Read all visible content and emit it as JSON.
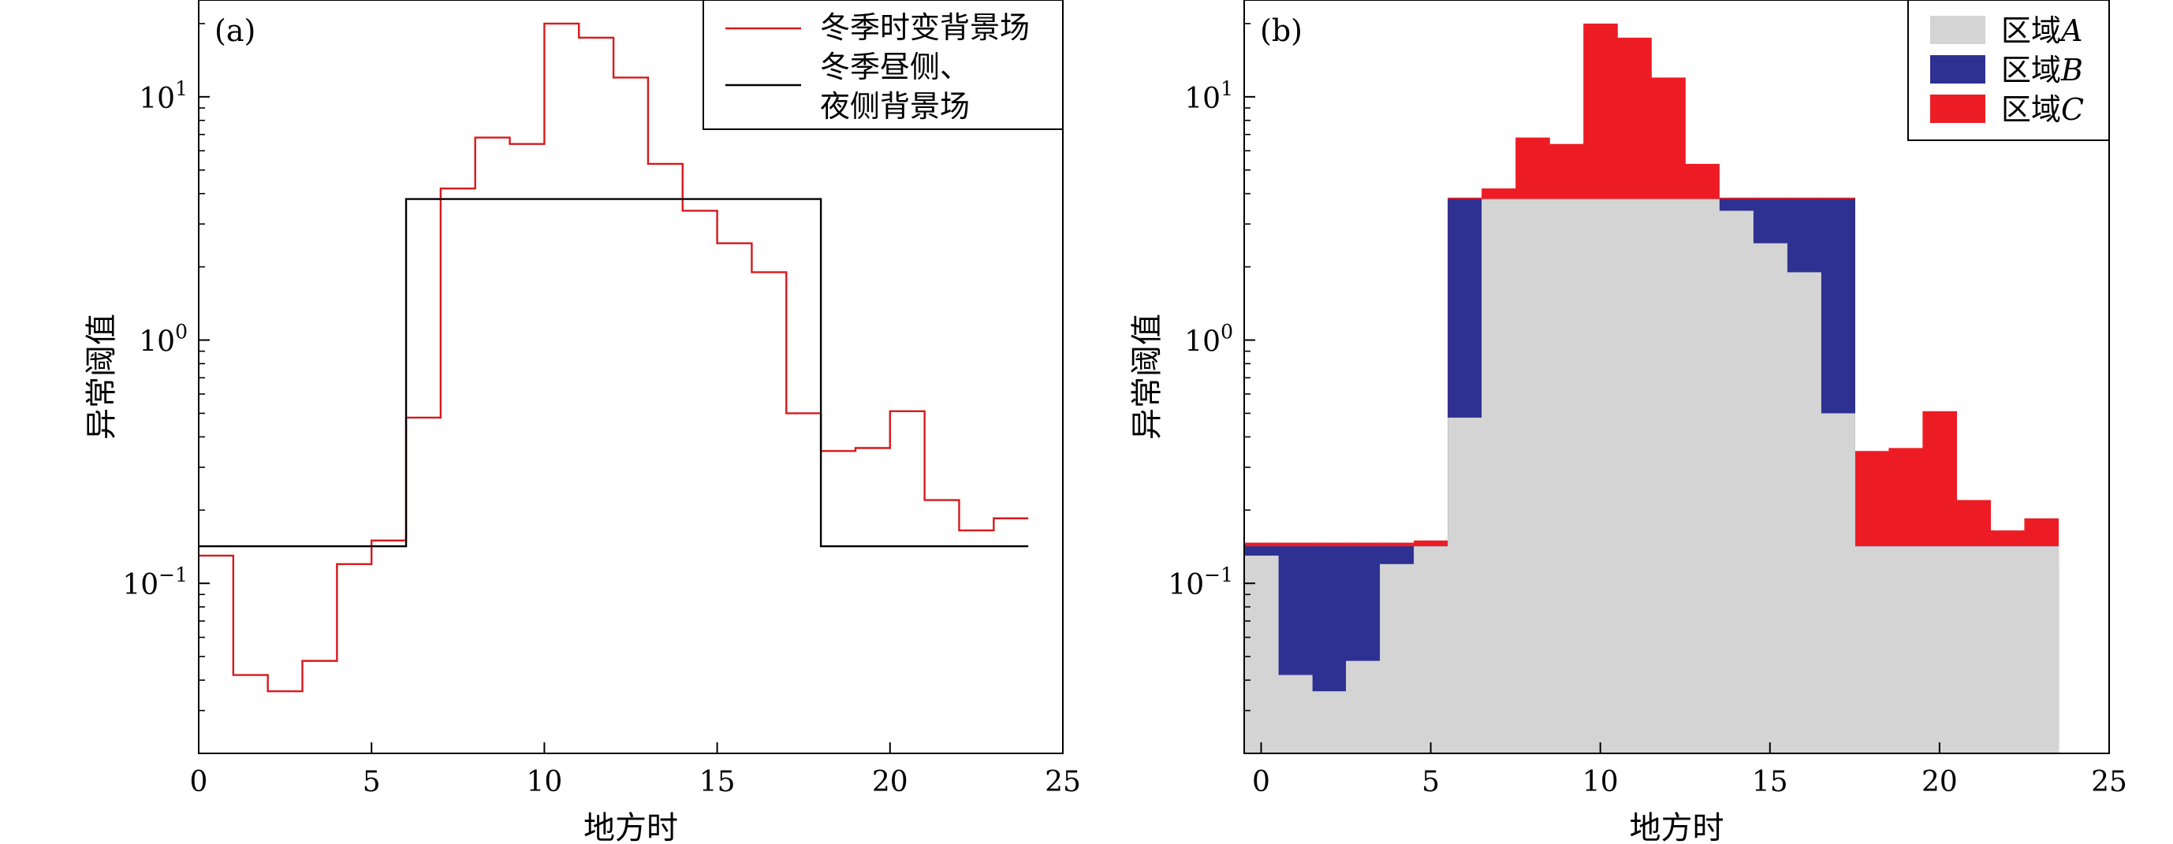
{
  "chart_data": [
    {
      "type": "step-line",
      "panel_label": "(a)",
      "xlabel": "地方时",
      "ylabel": "异常阈值",
      "xlim": [
        0,
        25
      ],
      "ylim": [
        0.02,
        25
      ],
      "yscale": "log",
      "xticks": [
        0,
        5,
        10,
        15,
        20,
        25
      ],
      "xtick_labels": [
        "0",
        "5",
        "10",
        "15",
        "20",
        "25"
      ],
      "yticks": [
        0.1,
        1,
        10
      ],
      "ytick_labels": [
        {
          "base": "10",
          "exp": "−1"
        },
        {
          "base": "10",
          "exp": "0"
        },
        {
          "base": "10",
          "exp": "1"
        }
      ],
      "legend_position": "top-right",
      "series": [
        {
          "name": "冬季时变背景场",
          "color": "#d7191c",
          "bin_edges": [
            0,
            1,
            2,
            3,
            4,
            5,
            6,
            7,
            8,
            9,
            10,
            11,
            12,
            13,
            14,
            15,
            16,
            17,
            18,
            19,
            20,
            21,
            22,
            23,
            24
          ],
          "values": [
            0.13,
            0.042,
            0.036,
            0.048,
            0.12,
            0.15,
            0.48,
            4.2,
            6.8,
            6.4,
            20,
            17.5,
            12,
            5.3,
            3.4,
            2.5,
            1.9,
            0.5,
            0.35,
            0.36,
            0.51,
            0.22,
            0.165,
            0.185
          ]
        },
        {
          "name_lines": [
            "冬季昼侧、",
            "夜侧背景场"
          ],
          "color": "#000000",
          "bin_edges": [
            0,
            6,
            18,
            24
          ],
          "values": [
            0.142,
            3.8,
            0.142
          ]
        }
      ]
    },
    {
      "type": "stacked-bar",
      "panel_label": "(b)",
      "xlabel": "地方时",
      "ylabel": "异常阈值",
      "xlim": [
        -0.5,
        25
      ],
      "ylim": [
        0.02,
        25
      ],
      "yscale": "log",
      "xticks": [
        0,
        5,
        10,
        15,
        20,
        25
      ],
      "xtick_labels": [
        "0",
        "5",
        "10",
        "15",
        "20",
        "25"
      ],
      "yticks": [
        0.1,
        1,
        10
      ],
      "ytick_labels": [
        {
          "base": "10",
          "exp": "−1"
        },
        {
          "base": "10",
          "exp": "0"
        },
        {
          "base": "10",
          "exp": "1"
        }
      ],
      "legend_position": "top-right",
      "hours": [
        0,
        1,
        2,
        3,
        4,
        5,
        6,
        7,
        8,
        9,
        10,
        11,
        12,
        13,
        14,
        15,
        16,
        17,
        18,
        19,
        20,
        21,
        22,
        23
      ],
      "series": [
        {
          "name_prefix": "区域",
          "name_var": "A",
          "color": "#d4d4d4",
          "values": [
            0.13,
            0.042,
            0.036,
            0.048,
            0.12,
            0.142,
            0.48,
            3.8,
            3.8,
            3.8,
            3.8,
            3.8,
            3.8,
            3.8,
            3.4,
            2.5,
            1.9,
            0.5,
            0.142,
            0.142,
            0.142,
            0.142,
            0.142,
            0.142
          ]
        },
        {
          "name_prefix": "区域",
          "name_var": "B",
          "color": "#2e3192",
          "values": [
            0.142,
            0.142,
            0.142,
            0.142,
            0.142,
            0.142,
            3.8,
            3.8,
            3.8,
            3.8,
            3.8,
            3.8,
            3.8,
            3.8,
            3.8,
            3.8,
            3.8,
            3.8,
            0.142,
            0.142,
            0.142,
            0.142,
            0.142,
            0.142
          ]
        },
        {
          "name_prefix": "区域",
          "name_var": "C",
          "color": "#ed1c24",
          "values": [
            0.147,
            0.147,
            0.147,
            0.147,
            0.147,
            0.15,
            3.85,
            4.2,
            6.8,
            6.4,
            20,
            17.5,
            12,
            5.3,
            3.85,
            3.85,
            3.85,
            3.85,
            0.35,
            0.36,
            0.51,
            0.22,
            0.165,
            0.185
          ]
        }
      ]
    }
  ]
}
